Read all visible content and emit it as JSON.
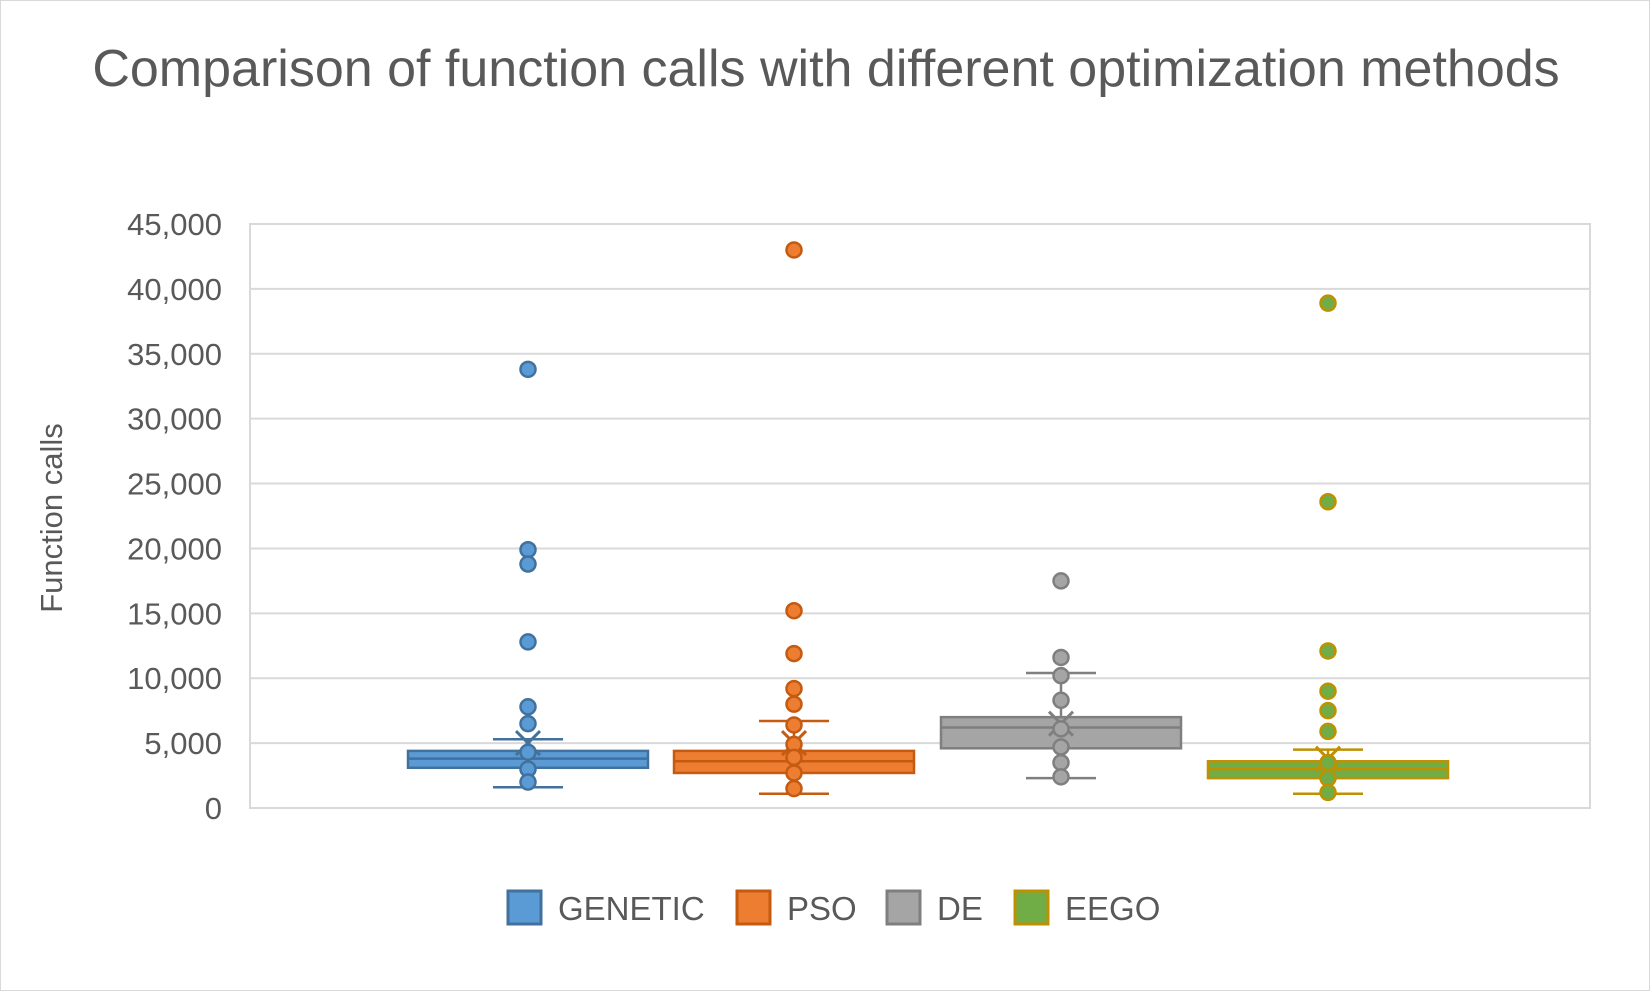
{
  "chart_data": {
    "type": "boxplot",
    "title": "Comparison of function calls with different optimization methods",
    "ylabel": "Function calls",
    "xlabel": "",
    "ylim": [
      0,
      45000
    ],
    "yticks": [
      0,
      5000,
      10000,
      15000,
      20000,
      25000,
      30000,
      35000,
      40000,
      45000
    ],
    "ytick_labels": [
      "0",
      "5,000",
      "10,000",
      "15,000",
      "20,000",
      "25,000",
      "30,000",
      "35,000",
      "40,000",
      "45,000"
    ],
    "grid": true,
    "legend_position": "bottom",
    "series": [
      {
        "name": "GENETIC",
        "color": "#5b9bd5",
        "edge": "#41719c",
        "whisker_low": 1600,
        "q1": 3100,
        "median": 3800,
        "q3": 4400,
        "whisker_high": 5300,
        "mean": 5000,
        "points": [
          33800,
          19900,
          18800,
          12800,
          7800,
          6500,
          4300,
          3000,
          2000
        ]
      },
      {
        "name": "PSO",
        "color": "#ed7d31",
        "edge": "#c55a11",
        "whisker_low": 1100,
        "q1": 2700,
        "median": 3600,
        "q3": 4400,
        "whisker_high": 6700,
        "mean": 5000,
        "points": [
          43000,
          15200,
          11900,
          9200,
          8000,
          6400,
          4900,
          3900,
          2700,
          1500
        ]
      },
      {
        "name": "DE",
        "color": "#a5a5a5",
        "edge": "#7f7f7f",
        "whisker_low": 2300,
        "q1": 4600,
        "median": 6200,
        "q3": 7000,
        "whisker_high": 10400,
        "mean": 6500,
        "points": [
          17500,
          11600,
          10200,
          8300,
          6100,
          4700,
          3500,
          2400
        ]
      },
      {
        "name": "EEGO",
        "color": "#70ad47",
        "edge": "#bf9000",
        "whisker_low": 1100,
        "q1": 2300,
        "median": 3000,
        "q3": 3600,
        "whisker_high": 4500,
        "mean": 3800,
        "points": [
          38900,
          23600,
          12100,
          9000,
          7500,
          5900,
          3500,
          2300,
          1200
        ]
      }
    ]
  }
}
